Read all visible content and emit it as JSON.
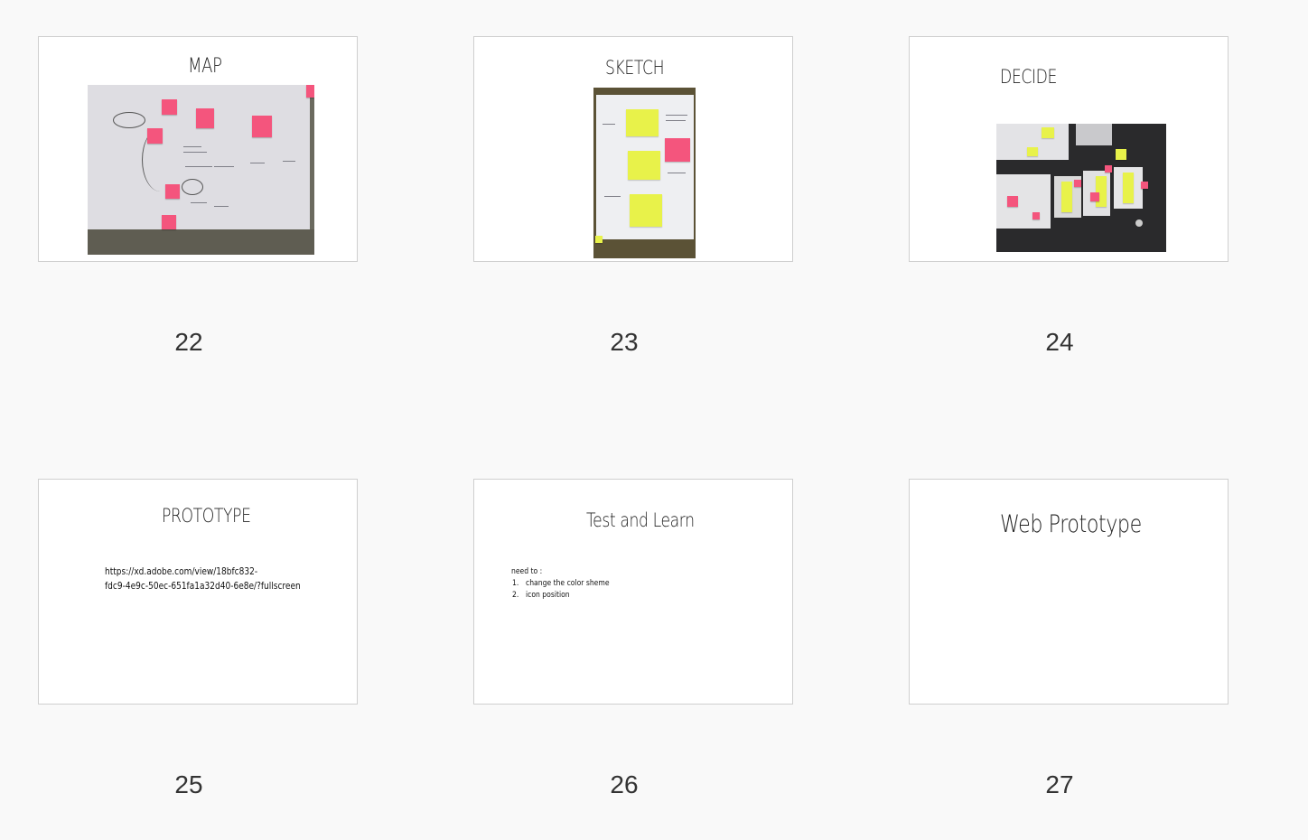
{
  "slides": [
    {
      "title": "MAP",
      "page": "22"
    },
    {
      "title": "SKETCH",
      "page": "23"
    },
    {
      "title": "DECIDE",
      "page": "24"
    },
    {
      "title": "PROTOTYPE",
      "page": "25",
      "body": [
        "https://xd.adobe.com/view/18bfc832-",
        "fdc9-4e9c-50ec-651fa1a32d40-6e8e/?fullscreen"
      ]
    },
    {
      "title": "Test and Learn",
      "page": "26",
      "body_intro": "need to :",
      "list": [
        {
          "num": "1.",
          "text": "change the color sheme"
        },
        {
          "num": "2.",
          "text": "icon position"
        }
      ]
    },
    {
      "title": "Web Prototype",
      "page": "27"
    }
  ],
  "icons": {
    "map_photo": "whiteboard-photo",
    "sketch_photo": "sketch-paper-photo",
    "decide_photo": "table-notes-photo"
  },
  "colors": {
    "background": "#f9f9f9",
    "slide_border": "#cfcfcf",
    "sticky_pink": "#f4557d",
    "sticky_yellow": "#e8f24a"
  }
}
